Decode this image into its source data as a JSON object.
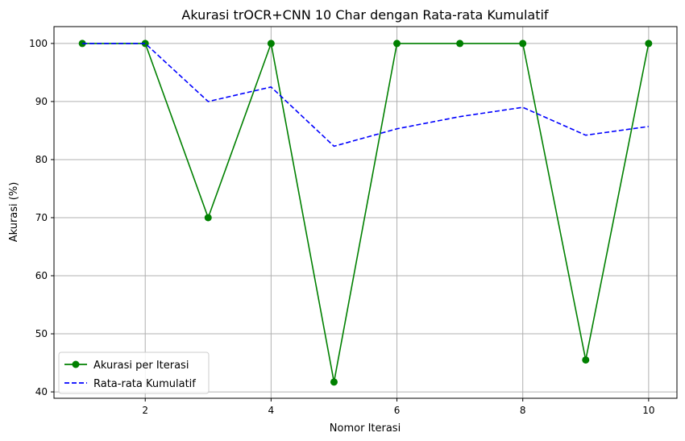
{
  "chart_data": {
    "type": "line",
    "title": "Akurasi trOCR+CNN 10 Char dengan Rata-rata Kumulatif",
    "xlabel": "Nomor Iterasi",
    "ylabel": "Akurasi (%)",
    "x": [
      1,
      2,
      3,
      4,
      5,
      6,
      7,
      8,
      9,
      10
    ],
    "xlim": [
      0.55,
      10.45
    ],
    "ylim": [
      38.9,
      102.9
    ],
    "xticks": [
      2,
      4,
      6,
      8,
      10
    ],
    "yticks": [
      40,
      50,
      60,
      70,
      80,
      90,
      100
    ],
    "grid": true,
    "legend_position": "lower-left",
    "series": [
      {
        "name": "Akurasi per Iterasi",
        "values": [
          100,
          100,
          70,
          100,
          41.7,
          100,
          100,
          100,
          45.5,
          100
        ],
        "color": "#008000",
        "style": "solid",
        "marker": "circle"
      },
      {
        "name": "Rata-rata Kumulatif",
        "values": [
          100,
          100,
          90,
          92.5,
          82.3,
          85.3,
          87.4,
          89.0,
          84.2,
          85.7
        ],
        "color": "#0000ff",
        "style": "dashed",
        "marker": "none"
      }
    ]
  }
}
